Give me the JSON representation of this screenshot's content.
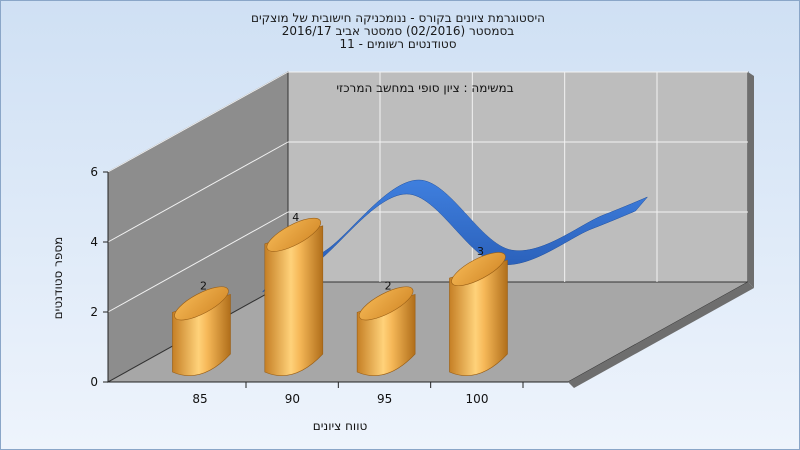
{
  "chart_data": {
    "type": "bar",
    "title_lines": [
      "היסטוגרמת ציונים בקורס - ננומכניקה חישובית של מוצקים",
      "בסמסטר  (02/2016)  סמסטר אביב 2016/17",
      "סטודנטים רשומים - 11"
    ],
    "inner_label": "במשימה : ציון סופי במחשב המרכזי",
    "xlabel": "טווח ציונים",
    "ylabel": "מספר סטודנטים",
    "x_ticks": [
      "85",
      "90",
      "95",
      "100"
    ],
    "y_ticks": [
      "0",
      "2",
      "4",
      "6"
    ],
    "ylim": [
      0,
      6
    ],
    "bars": [
      {
        "x": 86,
        "value": 2,
        "label": "2"
      },
      {
        "x": 91,
        "value": 4,
        "label": "4"
      },
      {
        "x": 96,
        "value": 2,
        "label": "2"
      },
      {
        "x": 101,
        "value": 3,
        "label": "3"
      }
    ],
    "curve": {
      "color": "#2f6fcf"
    },
    "bar_color": "#e8a040",
    "grid": true,
    "legend": "none"
  }
}
